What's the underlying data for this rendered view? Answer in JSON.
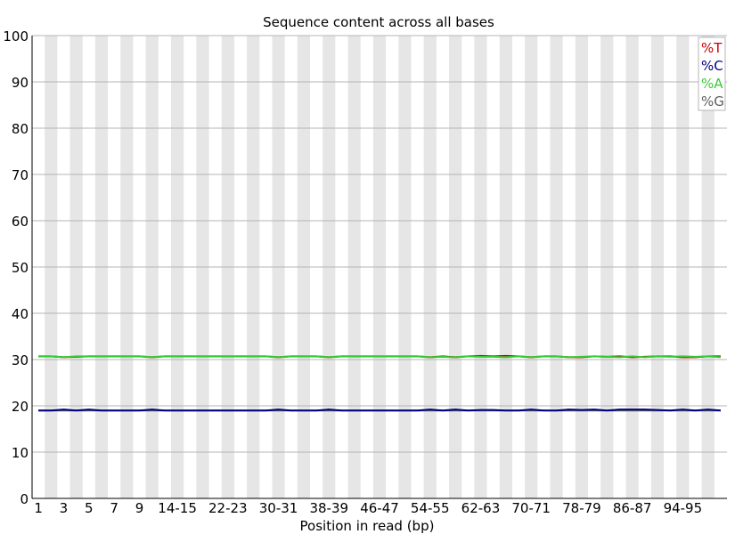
{
  "chart_data": {
    "type": "line",
    "title": "Sequence content across all bases",
    "xlabel": "Position in read (bp)",
    "ylabel": "",
    "ylim": [
      0,
      100
    ],
    "yticks": [
      0,
      10,
      20,
      30,
      40,
      50,
      60,
      70,
      80,
      90,
      100
    ],
    "categories": [
      "1",
      "2",
      "3",
      "4",
      "5",
      "6",
      "7",
      "8",
      "9",
      "10-11",
      "12-13",
      "14-15",
      "16-17",
      "18-19",
      "20-21",
      "22-23",
      "24-25",
      "26-27",
      "28-29",
      "30-31",
      "32-33",
      "34-35",
      "36-37",
      "38-39",
      "40-41",
      "42-43",
      "44-45",
      "46-47",
      "48-49",
      "50-51",
      "52-53",
      "54-55",
      "56-57",
      "58-59",
      "60-61",
      "62-63",
      "64-65",
      "66-67",
      "68-69",
      "70-71",
      "72-73",
      "74-75",
      "76-77",
      "78-79",
      "80-81",
      "82-83",
      "84-85",
      "86-87",
      "88-89",
      "90-91",
      "92-93",
      "94-95",
      "96-97",
      "98-99",
      "100-101"
    ],
    "xtick_labels": [
      "1",
      "",
      "3",
      "",
      "5",
      "",
      "7",
      "",
      "9",
      "",
      "",
      "14-15",
      "",
      "",
      "",
      "22-23",
      "",
      "",
      "",
      "30-31",
      "",
      "",
      "",
      "38-39",
      "",
      "",
      "",
      "46-47",
      "",
      "",
      "",
      "54-55",
      "",
      "",
      "",
      "62-63",
      "",
      "",
      "",
      "70-71",
      "",
      "",
      "",
      "78-79",
      "",
      "",
      "",
      "86-87",
      "",
      "",
      "",
      "94-95",
      "",
      "",
      ""
    ],
    "legend_position": "top-right",
    "series": [
      {
        "name": "%T",
        "color": "#cc0000",
        "values": [
          30.7,
          30.7,
          30.5,
          30.6,
          30.7,
          30.7,
          30.7,
          30.7,
          30.7,
          30.5,
          30.7,
          30.7,
          30.7,
          30.7,
          30.7,
          30.7,
          30.7,
          30.7,
          30.7,
          30.5,
          30.7,
          30.7,
          30.7,
          30.5,
          30.7,
          30.7,
          30.7,
          30.7,
          30.7,
          30.7,
          30.7,
          30.5,
          30.7,
          30.5,
          30.7,
          30.8,
          30.7,
          30.8,
          30.7,
          30.5,
          30.7,
          30.7,
          30.5,
          30.5,
          30.7,
          30.6,
          30.7,
          30.5,
          30.6,
          30.7,
          30.7,
          30.5,
          30.5,
          30.7,
          30.7
        ]
      },
      {
        "name": "%C",
        "color": "#000080",
        "values": [
          19.0,
          19.0,
          19.2,
          19.0,
          19.2,
          19.0,
          19.0,
          19.0,
          19.0,
          19.2,
          19.0,
          19.0,
          19.0,
          19.0,
          19.0,
          19.0,
          19.0,
          19.0,
          19.0,
          19.2,
          19.0,
          19.0,
          19.0,
          19.2,
          19.0,
          19.0,
          19.0,
          19.0,
          19.0,
          19.0,
          19.0,
          19.2,
          19.0,
          19.2,
          19.0,
          19.1,
          19.1,
          19.0,
          19.0,
          19.2,
          19.0,
          19.0,
          19.2,
          19.1,
          19.2,
          19.0,
          19.2,
          19.2,
          19.2,
          19.1,
          19.0,
          19.2,
          19.0,
          19.2,
          19.0
        ]
      },
      {
        "name": "%A",
        "color": "#33cc33",
        "values": [
          30.7,
          30.7,
          30.5,
          30.7,
          30.7,
          30.7,
          30.7,
          30.7,
          30.7,
          30.5,
          30.7,
          30.7,
          30.7,
          30.7,
          30.7,
          30.7,
          30.7,
          30.7,
          30.7,
          30.5,
          30.7,
          30.7,
          30.7,
          30.5,
          30.7,
          30.7,
          30.7,
          30.7,
          30.7,
          30.7,
          30.7,
          30.5,
          30.6,
          30.5,
          30.7,
          30.6,
          30.6,
          30.5,
          30.7,
          30.5,
          30.7,
          30.7,
          30.5,
          30.6,
          30.7,
          30.6,
          30.5,
          30.7,
          30.5,
          30.7,
          30.6,
          30.7,
          30.6,
          30.7,
          30.5
        ]
      },
      {
        "name": "%G",
        "color": "#606060",
        "values": [
          19.0,
          19.0,
          19.0,
          19.0,
          19.0,
          19.0,
          19.0,
          19.0,
          19.0,
          19.0,
          19.0,
          19.0,
          19.0,
          19.0,
          19.0,
          19.0,
          19.0,
          19.0,
          19.0,
          19.0,
          19.0,
          19.0,
          19.0,
          19.0,
          19.0,
          19.0,
          19.0,
          19.0,
          19.0,
          19.0,
          19.0,
          19.0,
          19.0,
          19.0,
          19.0,
          19.0,
          19.0,
          19.0,
          19.0,
          19.0,
          19.0,
          19.0,
          19.0,
          19.0,
          19.0,
          19.0,
          19.0,
          19.0,
          19.0,
          19.0,
          19.0,
          19.0,
          19.0,
          19.0,
          19.0
        ]
      }
    ],
    "grid": true
  }
}
